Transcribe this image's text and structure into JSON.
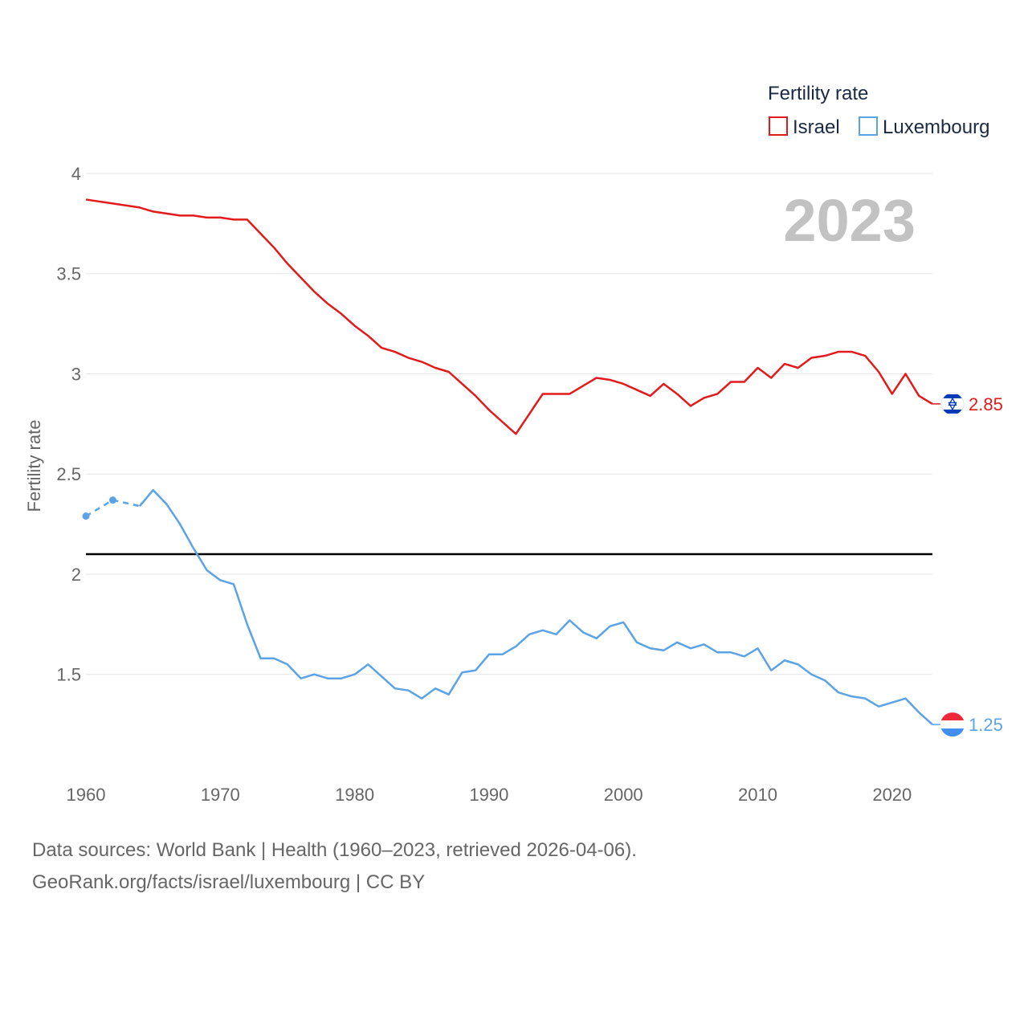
{
  "chart_data": {
    "type": "line",
    "ylabel": "Fertility rate",
    "xlabel": "",
    "xlim": [
      1960,
      2023
    ],
    "ylim": [
      1.05,
      4
    ],
    "x_ticks": [
      1960,
      1970,
      1980,
      1990,
      2000,
      2010,
      2020
    ],
    "y_ticks": [
      1.5,
      2,
      2.5,
      3,
      3.5,
      4
    ],
    "y_tick_labels": [
      "1.5",
      "2",
      "2.5",
      "3",
      "3.5",
      "4"
    ],
    "reference_line": {
      "y": 2.1,
      "color": "#000000"
    },
    "year_label": "2023",
    "legend": {
      "title": "Fertility rate",
      "position": "top-right"
    },
    "series": [
      {
        "name": "Israel",
        "color": "#e31a1c",
        "end_label": "2.85",
        "x": [
          1960,
          1961,
          1962,
          1963,
          1964,
          1965,
          1966,
          1967,
          1968,
          1969,
          1970,
          1971,
          1972,
          1973,
          1974,
          1975,
          1976,
          1977,
          1978,
          1979,
          1980,
          1981,
          1982,
          1983,
          1984,
          1985,
          1986,
          1987,
          1988,
          1989,
          1990,
          1991,
          1992,
          1993,
          1994,
          1995,
          1996,
          1997,
          1998,
          1999,
          2000,
          2001,
          2002,
          2003,
          2004,
          2005,
          2006,
          2007,
          2008,
          2009,
          2010,
          2011,
          2012,
          2013,
          2014,
          2015,
          2016,
          2017,
          2018,
          2019,
          2020,
          2021,
          2022,
          2023
        ],
        "values": [
          3.87,
          3.86,
          3.85,
          3.84,
          3.83,
          3.81,
          3.8,
          3.79,
          3.79,
          3.78,
          3.78,
          3.77,
          3.77,
          3.7,
          3.63,
          3.55,
          3.48,
          3.41,
          3.35,
          3.3,
          3.24,
          3.19,
          3.13,
          3.11,
          3.08,
          3.06,
          3.03,
          3.01,
          2.95,
          2.89,
          2.82,
          2.76,
          2.7,
          2.8,
          2.9,
          2.9,
          2.9,
          2.94,
          2.98,
          2.97,
          2.95,
          2.92,
          2.89,
          2.95,
          2.9,
          2.84,
          2.88,
          2.9,
          2.96,
          2.96,
          3.03,
          2.98,
          3.05,
          3.03,
          3.08,
          3.09,
          3.11,
          3.11,
          3.09,
          3.01,
          2.9,
          3.0,
          2.89,
          2.85
        ]
      },
      {
        "name": "Luxembourg",
        "color": "#5ba3e6",
        "end_label": "1.25",
        "x": [
          1960,
          1962,
          1964,
          1965,
          1966,
          1967,
          1968,
          1969,
          1970,
          1971,
          1972,
          1973,
          1974,
          1975,
          1976,
          1977,
          1978,
          1979,
          1980,
          1981,
          1982,
          1983,
          1984,
          1985,
          1986,
          1987,
          1988,
          1989,
          1990,
          1991,
          1992,
          1993,
          1994,
          1995,
          1996,
          1997,
          1998,
          1999,
          2000,
          2001,
          2002,
          2003,
          2004,
          2005,
          2006,
          2007,
          2008,
          2009,
          2010,
          2011,
          2012,
          2013,
          2014,
          2015,
          2016,
          2017,
          2018,
          2019,
          2020,
          2021,
          2022,
          2023
        ],
        "values": [
          2.29,
          2.37,
          2.34,
          2.42,
          2.35,
          2.25,
          2.13,
          2.02,
          1.97,
          1.95,
          1.75,
          1.58,
          1.58,
          1.55,
          1.48,
          1.5,
          1.48,
          1.48,
          1.5,
          1.55,
          1.49,
          1.43,
          1.42,
          1.38,
          1.43,
          1.4,
          1.51,
          1.52,
          1.6,
          1.6,
          1.64,
          1.7,
          1.72,
          1.7,
          1.77,
          1.71,
          1.68,
          1.74,
          1.76,
          1.66,
          1.63,
          1.62,
          1.66,
          1.63,
          1.65,
          1.61,
          1.61,
          1.59,
          1.63,
          1.52,
          1.57,
          1.55,
          1.5,
          1.47,
          1.41,
          1.39,
          1.38,
          1.34,
          1.36,
          1.38,
          1.31,
          1.25
        ],
        "dashed_until": 1964,
        "point_markers_x": [
          1960,
          1962
        ]
      }
    ]
  },
  "source": {
    "line1": "Data sources: World Bank | Health (1960–2023, retrieved 2026-04-06).",
    "line2": "GeoRank.org/facts/israel/luxembourg | CC BY"
  }
}
